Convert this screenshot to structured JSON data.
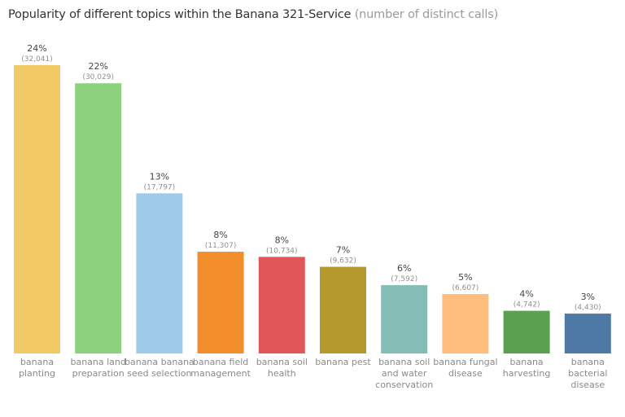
{
  "chart_data": {
    "type": "bar",
    "title": "Popularity of different topics within the Banana 321-Service",
    "subtitle": "(number of distinct calls)",
    "xlabel": "",
    "ylabel": "",
    "ylim": [
      0,
      32041
    ],
    "grid": false,
    "legend": "none",
    "categories": [
      [
        "banana",
        "planting"
      ],
      [
        "banana land",
        "preparation"
      ],
      [
        "banana banana",
        "seed selection"
      ],
      [
        "banana field",
        "management"
      ],
      [
        "banana soil",
        "health"
      ],
      [
        "banana pest"
      ],
      [
        "banana soil",
        "and water",
        "conservation"
      ],
      [
        "banana fungal",
        "disease"
      ],
      [
        "banana",
        "harvesting"
      ],
      [
        "banana",
        "bacterial",
        "disease"
      ]
    ],
    "values": [
      32041,
      30029,
      17797,
      11307,
      10734,
      9632,
      7592,
      6607,
      4742,
      4430
    ],
    "percent_labels": [
      "24%",
      "22%",
      "13%",
      "8%",
      "8%",
      "7%",
      "6%",
      "5%",
      "4%",
      "3%"
    ],
    "count_labels": [
      "(32,041)",
      "(30,029)",
      "(17,797)",
      "(11,307)",
      "(10,734)",
      "(9,632)",
      "(7,592)",
      "(6,607)",
      "(4,742)",
      "(4,430)"
    ],
    "colors": [
      "#f1ca66",
      "#8dd17e",
      "#a0cbe8",
      "#f28e2b",
      "#e15759",
      "#b6992d",
      "#86bcb6",
      "#ffbe7d",
      "#59a14f",
      "#4e79a7"
    ]
  }
}
